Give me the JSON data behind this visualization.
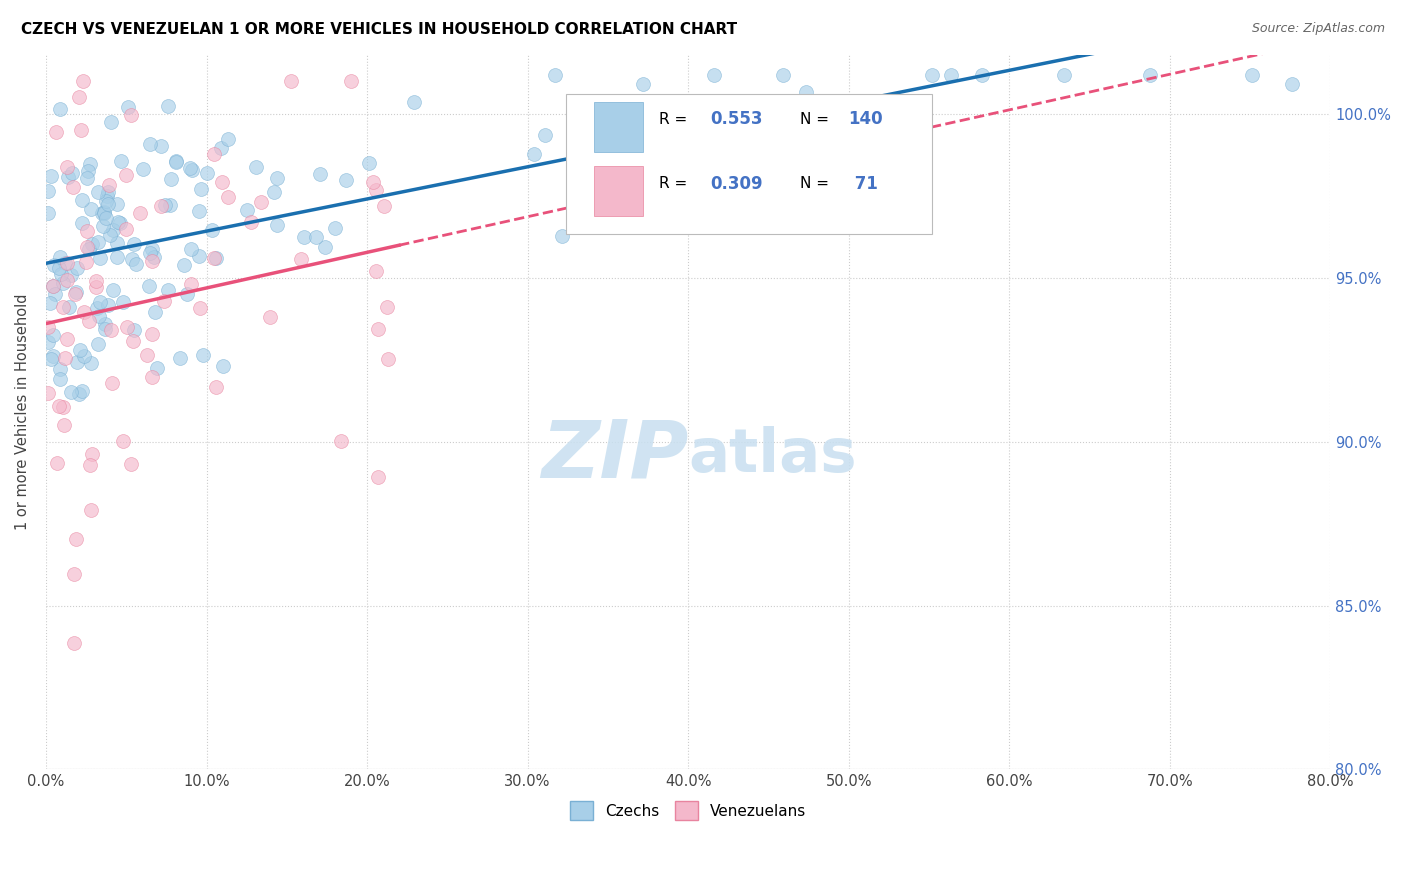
{
  "title": "CZECH VS VENEZUELAN 1 OR MORE VEHICLES IN HOUSEHOLD CORRELATION CHART",
  "source": "Source: ZipAtlas.com",
  "ylabel": "1 or more Vehicles in Household",
  "yticks": [
    80.0,
    85.0,
    90.0,
    95.0,
    100.0
  ],
  "ytick_labels": [
    "80.0%",
    "85.0%",
    "90.0%",
    "95.0%",
    "100.0%"
  ],
  "xmin": 0.0,
  "xmax": 80.0,
  "ymin": 80.0,
  "ymax": 101.8,
  "legend_czech_R": "0.553",
  "legend_czech_N": "140",
  "legend_ven_R": "0.309",
  "legend_ven_N": " 71",
  "czech_color": "#a8cfe8",
  "czech_edge_color": "#7ab0d4",
  "venezuelan_color": "#f4b8cb",
  "venezuelan_edge_color": "#e8849f",
  "czech_line_color": "#1a6faf",
  "venezuelan_line_color": "#e8517a",
  "watermark_color": "#c8dff0",
  "background_color": "#ffffff",
  "grid_color": "#cccccc",
  "right_tick_color": "#4472C4",
  "scatter_size": 100,
  "scatter_alpha": 0.65
}
